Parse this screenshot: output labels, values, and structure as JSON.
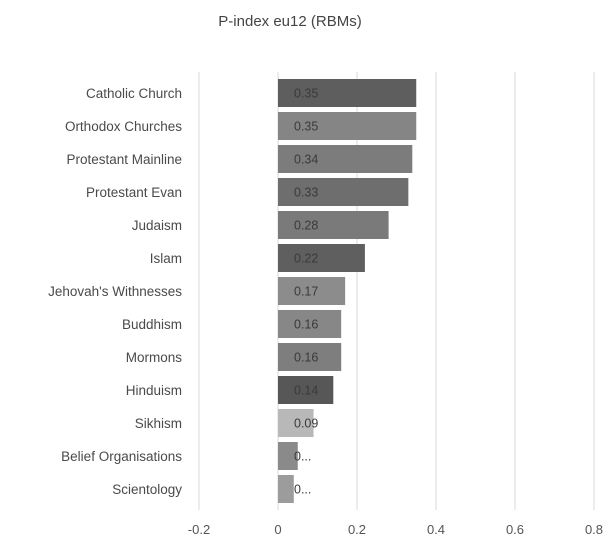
{
  "chart_data": {
    "type": "bar",
    "orientation": "horizontal",
    "title": "P-index eu12 (RBMs)",
    "xlabel": "",
    "ylabel": "",
    "xlim": [
      -0.2,
      0.8
    ],
    "x_ticks": [
      "-0.2",
      "0",
      "0.2",
      "0.4",
      "0.6",
      "0.8"
    ],
    "grid": true,
    "legend": "none",
    "categories": [
      "Catholic Church",
      "Orthodox Churches",
      "Protestant Mainline",
      "Protestant Evan",
      "Judaism",
      "Islam",
      "Jehovah's Withnesses",
      "Buddhism",
      "Mormons",
      "Hinduism",
      "Sikhism",
      "Belief Organisations",
      "Scientology"
    ],
    "values": [
      0.35,
      0.35,
      0.34,
      0.33,
      0.28,
      0.22,
      0.17,
      0.16,
      0.16,
      0.14,
      0.09,
      0.05,
      0.04
    ],
    "data_labels": [
      "0.35",
      "0.35",
      "0.34",
      "0.33",
      "0.28",
      "0.22",
      "0.17",
      "0.16",
      "0.16",
      "0.14",
      "0.09",
      "0...",
      "0..."
    ],
    "bar_colors": [
      "#5e5e5e",
      "#858585",
      "#7c7c7c",
      "#6e6e6e",
      "#7a7a7a",
      "#5f5f5f",
      "#8c8c8c",
      "#878787",
      "#7e7e7e",
      "#575757",
      "#b8b8b8",
      "#8a8a8a",
      "#9c9c9c"
    ],
    "label_colors": [
      "#3a3a3a",
      "#3a3a3a",
      "#3a3a3a",
      "#3a3a3a",
      "#3a3a3a",
      "#3a3a3a",
      "#3a3a3a",
      "#3a3a3a",
      "#3a3a3a",
      "#3a3a3a",
      "#3a3a3a",
      "#3a3a3a",
      "#3a3a3a"
    ]
  }
}
